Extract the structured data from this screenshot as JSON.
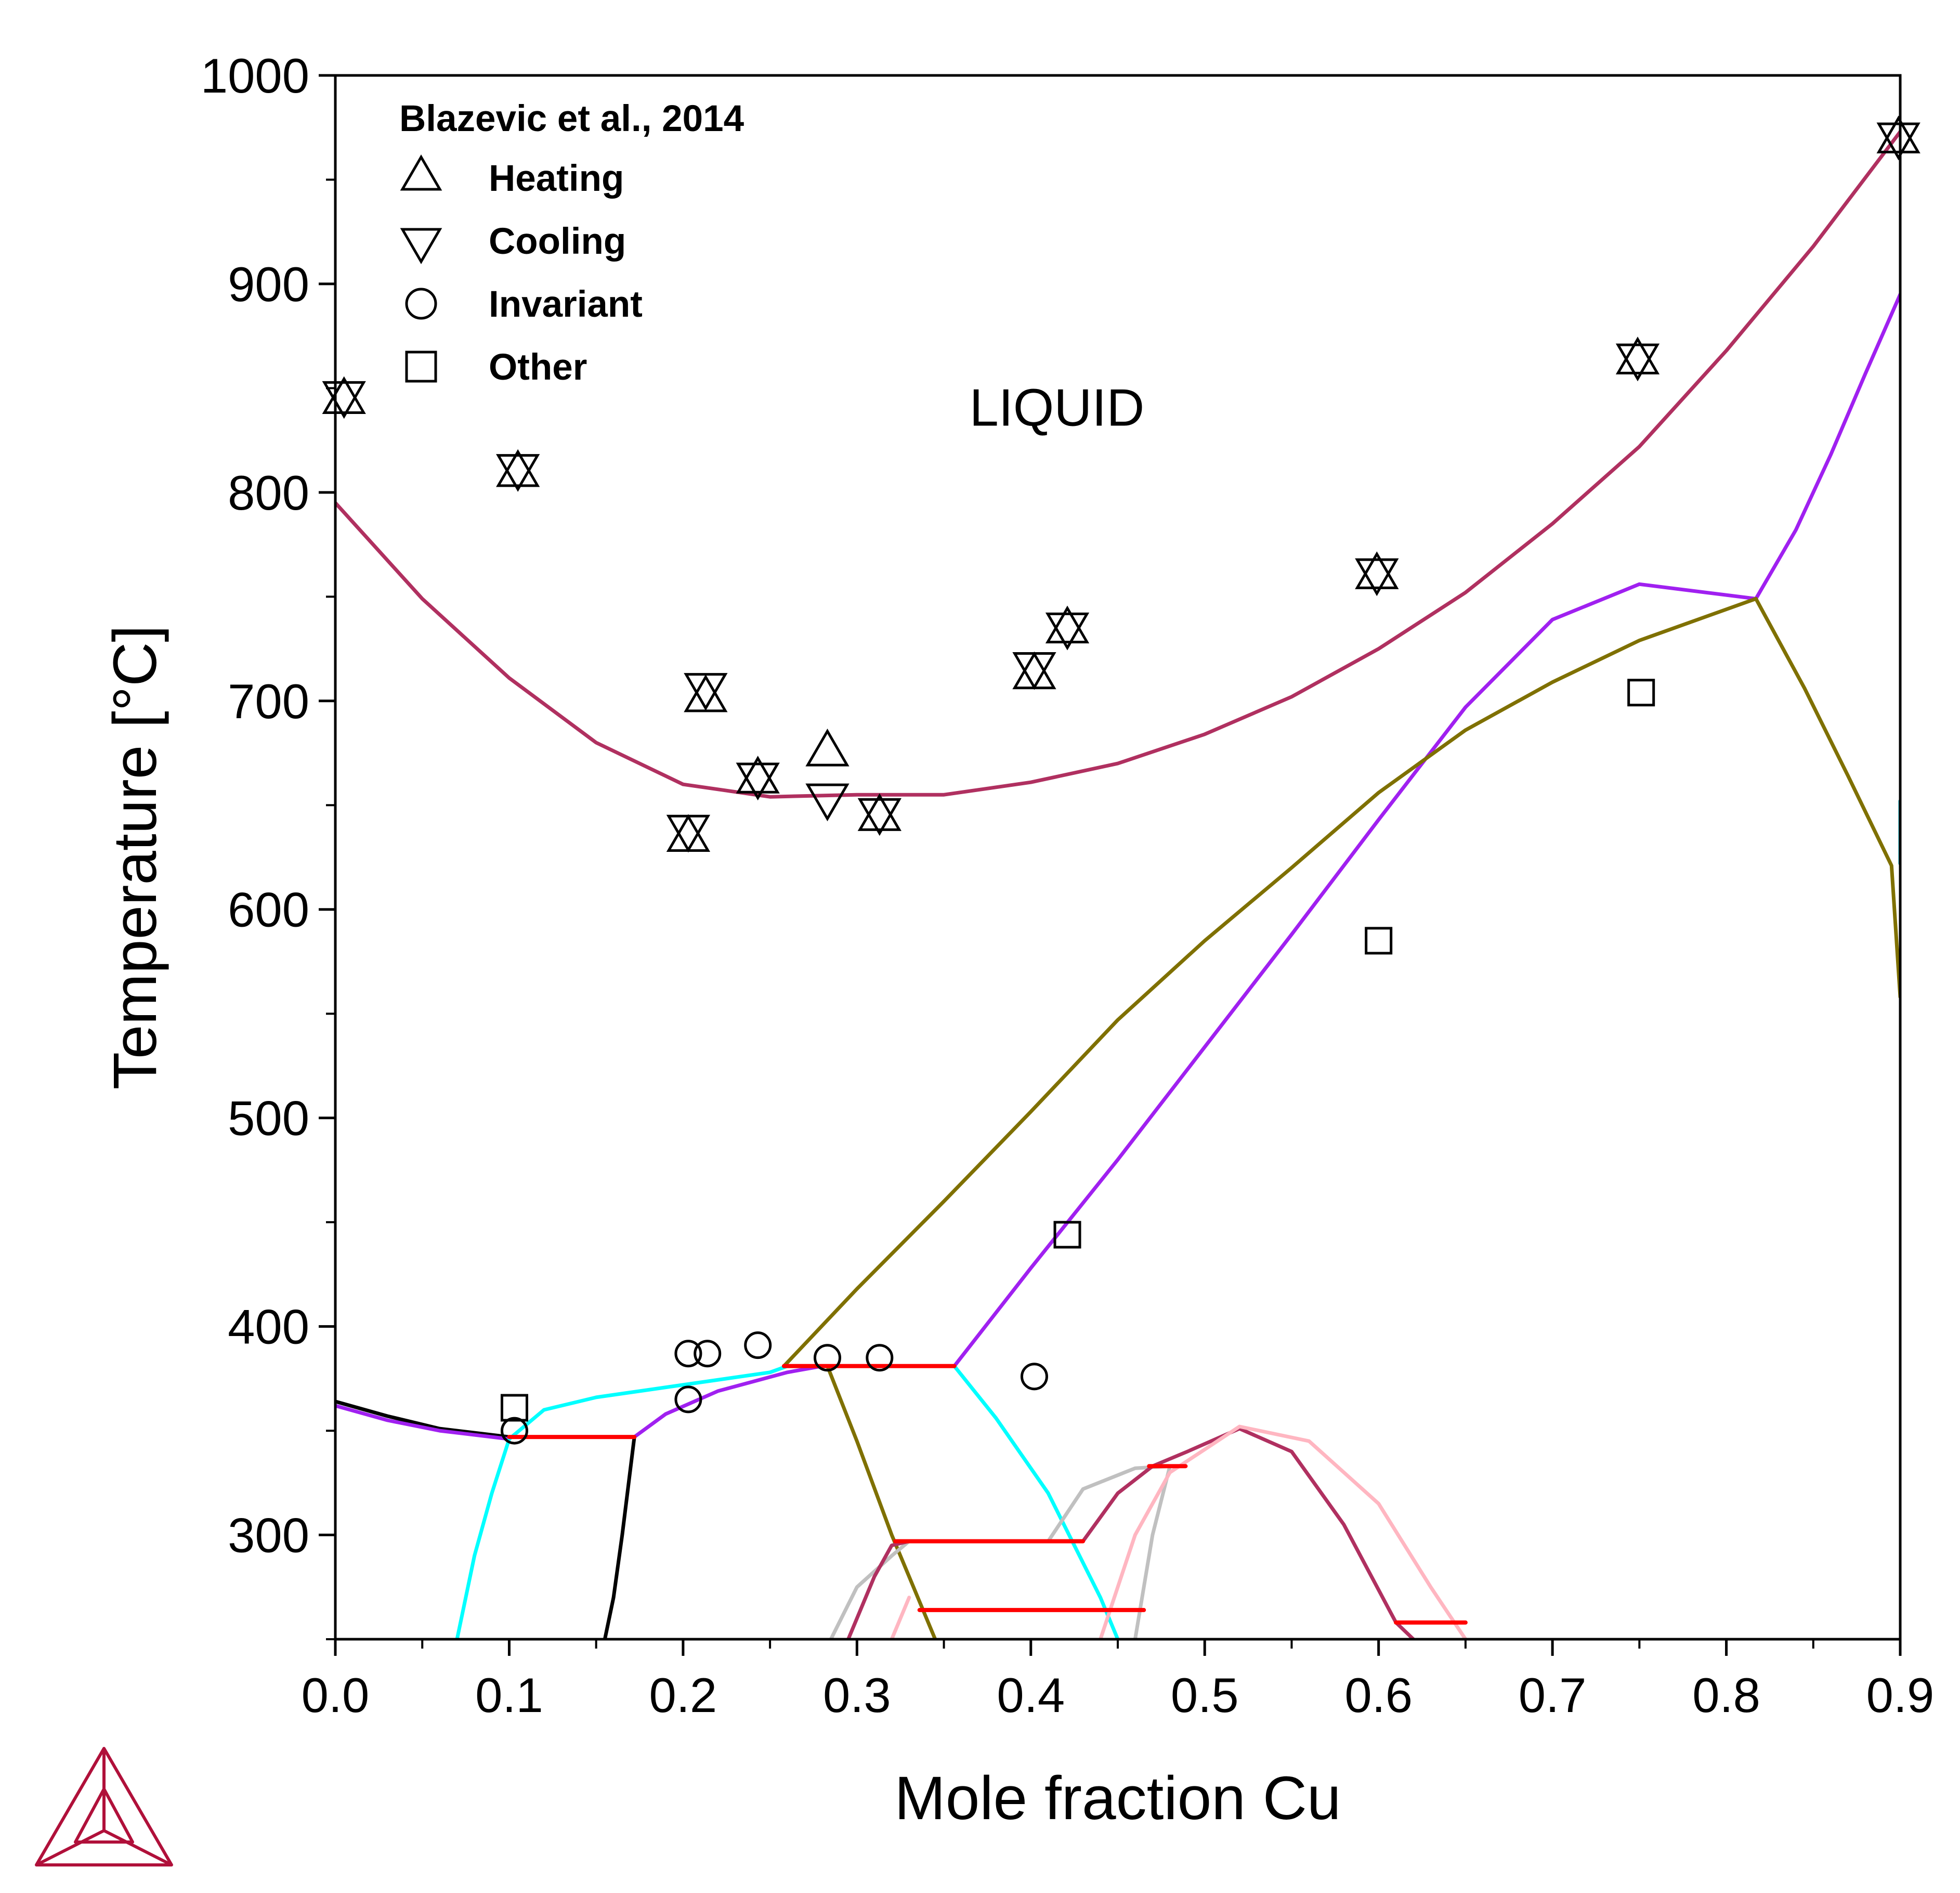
{
  "chart_data": {
    "type": "line",
    "xlabel": "Mole fraction Cu",
    "ylabel": "Temperature [°C]",
    "xlim": [
      0,
      0.9
    ],
    "ylim": [
      250,
      1000
    ],
    "xticks": [
      "0.0",
      "0.1",
      "0.2",
      "0.3",
      "0.4",
      "0.5",
      "0.6",
      "0.7",
      "0.8",
      "0.9"
    ],
    "yticks": [
      "300",
      "400",
      "500",
      "600",
      "700",
      "800",
      "900",
      "1000"
    ],
    "grid": false,
    "legend": {
      "title": "Blazevic et al., 2014",
      "placement": "top-left",
      "entries": [
        {
          "marker": "triangle-up",
          "label": "Heating"
        },
        {
          "marker": "triangle-down",
          "label": "Cooling"
        },
        {
          "marker": "circle",
          "label": "Invariant"
        },
        {
          "marker": "square",
          "label": "Other"
        }
      ]
    },
    "annotations": [
      {
        "text": "LIQUID",
        "x": 0.415,
        "y": 832
      }
    ],
    "series": [
      {
        "color": "#b03060",
        "points": [
          [
            0,
            795
          ],
          [
            0.05,
            749
          ],
          [
            0.1,
            711
          ],
          [
            0.15,
            680
          ],
          [
            0.2,
            660
          ],
          [
            0.25,
            654
          ],
          [
            0.3,
            655
          ],
          [
            0.35,
            655
          ],
          [
            0.4,
            661
          ],
          [
            0.45,
            670
          ],
          [
            0.5,
            684
          ],
          [
            0.55,
            702
          ],
          [
            0.6,
            725
          ],
          [
            0.65,
            752
          ],
          [
            0.7,
            785
          ],
          [
            0.75,
            822
          ],
          [
            0.8,
            868
          ],
          [
            0.85,
            918
          ],
          [
            0.9,
            973
          ]
        ]
      },
      {
        "color": "#a020f0",
        "points": [
          [
            0.817,
            749
          ],
          [
            0.84,
            782
          ],
          [
            0.86,
            818
          ],
          [
            0.88,
            857
          ],
          [
            0.9,
            895
          ]
        ]
      },
      {
        "color": "#a020f0",
        "points": [
          [
            0.356,
            381
          ],
          [
            0.4,
            428
          ],
          [
            0.45,
            480
          ],
          [
            0.5,
            534
          ],
          [
            0.55,
            588
          ],
          [
            0.6,
            643
          ],
          [
            0.65,
            697
          ],
          [
            0.7,
            739
          ],
          [
            0.75,
            756
          ],
          [
            0.817,
            749
          ]
        ]
      },
      {
        "color": "#7f7000",
        "points": [
          [
            0.258,
            381
          ],
          [
            0.3,
            418
          ],
          [
            0.35,
            460
          ],
          [
            0.4,
            503
          ],
          [
            0.45,
            547
          ],
          [
            0.5,
            585
          ],
          [
            0.55,
            620
          ],
          [
            0.6,
            656
          ],
          [
            0.65,
            686
          ],
          [
            0.7,
            709
          ],
          [
            0.75,
            729
          ],
          [
            0.817,
            749
          ]
        ]
      },
      {
        "color": "#7f7000",
        "points": [
          [
            0.817,
            749
          ],
          [
            0.845,
            706
          ],
          [
            0.87,
            664
          ],
          [
            0.895,
            621
          ],
          [
            0.9,
            558
          ]
        ]
      },
      {
        "color": "#0097a7",
        "points": [
          [
            0.9,
            622
          ],
          [
            0.9,
            652
          ]
        ]
      },
      {
        "color": "#000000",
        "points": [
          [
            0,
            364
          ],
          [
            0.03,
            357
          ],
          [
            0.06,
            351
          ],
          [
            0.1,
            347
          ]
        ]
      },
      {
        "color": "#a020f0",
        "points": [
          [
            0,
            362
          ],
          [
            0.03,
            355
          ],
          [
            0.06,
            350
          ],
          [
            0.1,
            346
          ]
        ]
      },
      {
        "color": "#000000",
        "points": [
          [
            0.172,
            347
          ],
          [
            0.165,
            300
          ],
          [
            0.16,
            270
          ],
          [
            0.155,
            250
          ]
        ]
      },
      {
        "color": "#00ffff",
        "points": [
          [
            0.1,
            346
          ],
          [
            0.12,
            360
          ],
          [
            0.15,
            366
          ],
          [
            0.2,
            372
          ],
          [
            0.25,
            378
          ],
          [
            0.26,
            381
          ]
        ]
      },
      {
        "color": "#00ffff",
        "points": [
          [
            0.1,
            346
          ],
          [
            0.09,
            320
          ],
          [
            0.08,
            290
          ],
          [
            0.07,
            250
          ]
        ]
      },
      {
        "color": "#a020f0",
        "points": [
          [
            0.172,
            347
          ],
          [
            0.19,
            358
          ],
          [
            0.22,
            369
          ],
          [
            0.26,
            378
          ],
          [
            0.28,
            381
          ]
        ]
      },
      {
        "color": "#00ffff",
        "points": [
          [
            0.356,
            381
          ],
          [
            0.38,
            356
          ],
          [
            0.41,
            320
          ],
          [
            0.44,
            270
          ],
          [
            0.45,
            250
          ]
        ]
      },
      {
        "color": "#7f7000",
        "points": [
          [
            0.283,
            381
          ],
          [
            0.3,
            345
          ],
          [
            0.32,
            300
          ],
          [
            0.33,
            280
          ],
          [
            0.345,
            250
          ]
        ]
      },
      {
        "color": "#c0c0c0",
        "points": [
          [
            0.285,
            250
          ],
          [
            0.3,
            275
          ],
          [
            0.32,
            290
          ],
          [
            0.33,
            297
          ]
        ]
      },
      {
        "color": "#b03060",
        "points": [
          [
            0.295,
            250
          ],
          [
            0.31,
            280
          ],
          [
            0.32,
            295
          ],
          [
            0.33,
            297
          ]
        ]
      },
      {
        "color": "#c0c0c0",
        "points": [
          [
            0.41,
            297
          ],
          [
            0.43,
            322
          ],
          [
            0.46,
            332
          ],
          [
            0.48,
            333
          ],
          [
            0.47,
            300
          ],
          [
            0.46,
            250
          ]
        ]
      },
      {
        "color": "#b03060",
        "points": [
          [
            0.43,
            297
          ],
          [
            0.45,
            320
          ],
          [
            0.47,
            333
          ],
          [
            0.49,
            340
          ],
          [
            0.52,
            351
          ],
          [
            0.55,
            340
          ],
          [
            0.58,
            305
          ],
          [
            0.61,
            258
          ],
          [
            0.62,
            250
          ]
        ]
      },
      {
        "color": "#ffb6c1",
        "points": [
          [
            0.44,
            250
          ],
          [
            0.46,
            300
          ],
          [
            0.48,
            330
          ],
          [
            0.52,
            352
          ],
          [
            0.56,
            345
          ],
          [
            0.6,
            315
          ],
          [
            0.63,
            275
          ],
          [
            0.65,
            250
          ]
        ]
      },
      {
        "color": "#ffb6c1",
        "points": [
          [
            0.32,
            250
          ],
          [
            0.33,
            270
          ]
        ]
      },
      {
        "color": "#ff0000",
        "points": [
          [
            0.1,
            347
          ],
          [
            0.172,
            347
          ]
        ]
      },
      {
        "color": "#ff0000",
        "points": [
          [
            0.258,
            381
          ],
          [
            0.356,
            381
          ]
        ]
      },
      {
        "color": "#ff0000",
        "points": [
          [
            0.322,
            297
          ],
          [
            0.43,
            297
          ]
        ]
      },
      {
        "color": "#ff0000",
        "points": [
          [
            0.336,
            264
          ],
          [
            0.465,
            264
          ]
        ]
      },
      {
        "color": "#ff0000",
        "points": [
          [
            0.468,
            333
          ],
          [
            0.489,
            333
          ]
        ]
      },
      {
        "color": "#ff0000",
        "points": [
          [
            0.61,
            258
          ],
          [
            0.65,
            258
          ]
        ]
      }
    ],
    "markers": {
      "heating": [
        [
          0.005,
          844
        ],
        [
          0.105,
          809
        ],
        [
          0.203,
          634
        ],
        [
          0.213,
          701
        ],
        [
          0.243,
          662
        ],
        [
          0.283,
          675
        ],
        [
          0.313,
          644
        ],
        [
          0.402,
          712
        ],
        [
          0.421,
          734
        ],
        [
          0.599,
          760
        ],
        [
          0.749,
          863
        ],
        [
          0.899,
          969
        ]
      ],
      "cooling": [
        [
          0.005,
          847
        ],
        [
          0.105,
          812
        ],
        [
          0.203,
          639
        ],
        [
          0.213,
          707
        ],
        [
          0.243,
          664
        ],
        [
          0.283,
          654
        ],
        [
          0.313,
          647
        ],
        [
          0.402,
          717
        ],
        [
          0.421,
          736
        ],
        [
          0.599,
          762
        ],
        [
          0.749,
          865
        ],
        [
          0.899,
          971
        ]
      ],
      "invariant": [
        [
          0.103,
          350
        ],
        [
          0.203,
          365
        ],
        [
          0.203,
          387
        ],
        [
          0.214,
          387
        ],
        [
          0.243,
          391
        ],
        [
          0.283,
          385
        ],
        [
          0.313,
          385
        ],
        [
          0.402,
          376
        ]
      ],
      "other": [
        [
          0.103,
          361
        ],
        [
          0.6,
          585
        ],
        [
          0.421,
          444
        ],
        [
          0.751,
          704
        ]
      ]
    }
  }
}
